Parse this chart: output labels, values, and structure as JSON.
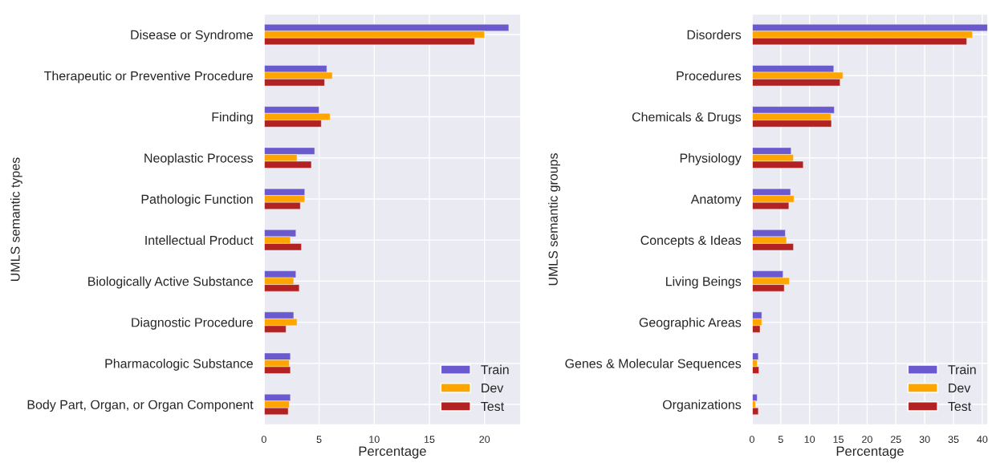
{
  "chart_data": [
    {
      "type": "bar",
      "orientation": "horizontal",
      "xlabel": "Percentage",
      "ylabel": "UMLS semantic types",
      "categories": [
        "Disease or Syndrome",
        "Therapeutic or Preventive Procedure",
        "Finding",
        "Neoplastic Process",
        "Pathologic Function",
        "Intellectual Product",
        "Biologically Active Substance",
        "Diagnostic Procedure",
        "Pharmacologic Substance",
        "Body Part, Organ, or Organ Component"
      ],
      "series": [
        {
          "name": "Train",
          "color": "#6a5acd",
          "values": [
            22.2,
            5.7,
            5.0,
            4.6,
            3.7,
            2.9,
            2.9,
            2.7,
            2.4,
            2.4
          ]
        },
        {
          "name": "Dev",
          "color": "#ffa500",
          "values": [
            20.0,
            6.2,
            6.0,
            3.0,
            3.7,
            2.4,
            2.7,
            3.0,
            2.3,
            2.3
          ]
        },
        {
          "name": "Test",
          "color": "#b22222",
          "values": [
            19.1,
            5.5,
            5.2,
            4.3,
            3.3,
            3.4,
            3.2,
            2.0,
            2.4,
            2.2
          ]
        }
      ],
      "xlim": [
        0,
        23.3
      ],
      "xticks": [
        0,
        5,
        10,
        15,
        20
      ],
      "grid": true,
      "legend": "bottom right"
    },
    {
      "type": "bar",
      "orientation": "horizontal",
      "xlabel": "Percentage",
      "ylabel": "UMLS semantic groups",
      "categories": [
        "Disorders",
        "Procedures",
        "Chemicals & Drugs",
        "Physiology",
        "Anatomy",
        "Concepts & Ideas",
        "Living Beings",
        "Geographic Areas",
        "Genes & Molecular Sequences",
        "Organizations"
      ],
      "series": [
        {
          "name": "Train",
          "color": "#6a5acd",
          "values": [
            41.0,
            14.2,
            14.3,
            6.8,
            6.7,
            5.8,
            5.4,
            1.7,
            1.1,
            0.9
          ]
        },
        {
          "name": "Dev",
          "color": "#ffa500",
          "values": [
            38.3,
            15.8,
            13.7,
            7.2,
            7.3,
            6.0,
            6.5,
            1.7,
            0.9,
            0.6
          ]
        },
        {
          "name": "Test",
          "color": "#b22222",
          "values": [
            37.3,
            15.3,
            13.8,
            8.9,
            6.4,
            7.2,
            5.6,
            1.4,
            1.2,
            1.1
          ]
        }
      ],
      "xlim": [
        0,
        41.0
      ],
      "xticks": [
        0,
        5,
        10,
        15,
        20,
        25,
        30,
        35,
        40
      ],
      "grid": true,
      "legend": "bottom right"
    }
  ]
}
